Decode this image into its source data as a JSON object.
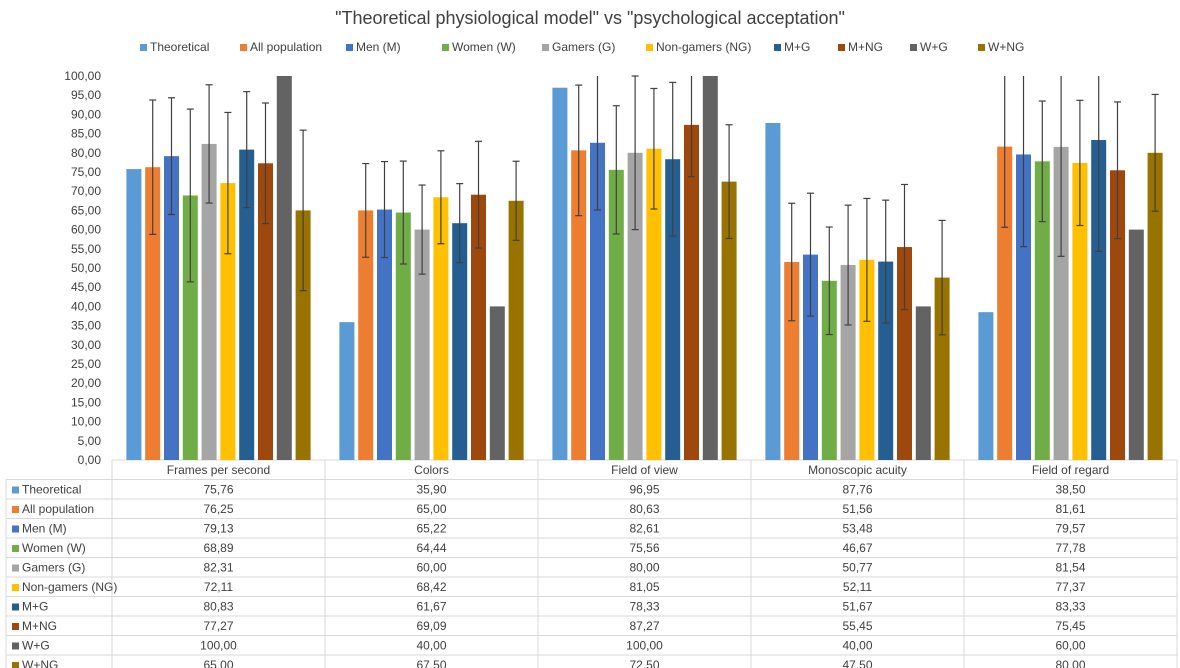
{
  "chart_data": {
    "type": "bar",
    "title": "\"Theoretical physiological model\" vs \"psychological acceptation\"",
    "xlabel": "",
    "ylabel": "",
    "ylim": [
      0,
      100
    ],
    "y_tick_step": 5,
    "y_tick_labels": [
      "0,00",
      "5,00",
      "10,00",
      "15,00",
      "20,00",
      "25,00",
      "30,00",
      "35,00",
      "40,00",
      "45,00",
      "50,00",
      "55,00",
      "60,00",
      "65,00",
      "70,00",
      "75,00",
      "80,00",
      "85,00",
      "90,00",
      "95,00",
      "100,00"
    ],
    "grid": false,
    "legend_position": "top",
    "categories": [
      "Frames per second",
      "Colors",
      "Field of view",
      "Monoscopic acuity",
      "Field of regard"
    ],
    "series": [
      {
        "name": "Theoretical",
        "color": "#5b9bd5",
        "values": [
          75.76,
          35.9,
          96.95,
          87.76,
          38.5
        ],
        "value_labels": [
          "75,76",
          "35,90",
          "96,95",
          "87,76",
          "38,50"
        ],
        "errors": [
          null,
          null,
          null,
          null,
          null
        ]
      },
      {
        "name": "All population",
        "color": "#ed7d31",
        "values": [
          76.25,
          65.0,
          80.63,
          51.56,
          81.61
        ],
        "value_labels": [
          "76,25",
          "65,00",
          "80,63",
          "51,56",
          "81,61"
        ],
        "errors": [
          17.5,
          12.2,
          17.0,
          15.3,
          21.0
        ]
      },
      {
        "name": "Men (M)",
        "color": "#4472c4",
        "values": [
          79.13,
          65.22,
          82.61,
          53.48,
          79.57
        ],
        "value_labels": [
          "79,13",
          "65,22",
          "82,61",
          "53,48",
          "79,57"
        ],
        "errors": [
          15.2,
          12.5,
          17.5,
          16.0,
          24.0
        ]
      },
      {
        "name": "Women (W)",
        "color": "#70ad47",
        "values": [
          68.89,
          64.44,
          75.56,
          46.67,
          77.78
        ],
        "value_labels": [
          "68,89",
          "64,44",
          "75,56",
          "46,67",
          "77,78"
        ],
        "errors": [
          22.5,
          13.4,
          16.7,
          14.0,
          15.7
        ]
      },
      {
        "name": "Gamers (G)",
        "color": "#a5a5a5",
        "values": [
          82.31,
          60.0,
          80.0,
          50.77,
          81.54
        ],
        "value_labels": [
          "82,31",
          "60,00",
          "80,00",
          "50,77",
          "81,54"
        ],
        "errors": [
          15.4,
          11.6,
          20.0,
          15.6,
          28.5
        ]
      },
      {
        "name": "Non-gamers (NG)",
        "color": "#ffc000",
        "values": [
          72.11,
          68.42,
          81.05,
          52.11,
          77.37
        ],
        "value_labels": [
          "72,11",
          "68,42",
          "81,05",
          "52,11",
          "77,37"
        ],
        "errors": [
          18.4,
          12.1,
          15.7,
          16.0,
          16.3
        ]
      },
      {
        "name": "M+G",
        "color": "#255e91",
        "values": [
          80.83,
          61.67,
          78.33,
          51.67,
          83.33
        ],
        "value_labels": [
          "80,83",
          "61,67",
          "78,33",
          "51,67",
          "83,33"
        ],
        "errors": [
          15.1,
          10.3,
          20.0,
          16.0,
          29.0
        ]
      },
      {
        "name": "M+NG",
        "color": "#9e480e",
        "values": [
          77.27,
          69.09,
          87.27,
          55.45,
          75.45
        ],
        "value_labels": [
          "77,27",
          "69,09",
          "87,27",
          "55,45",
          "75,45"
        ],
        "errors": [
          15.7,
          13.9,
          13.5,
          16.3,
          17.8
        ]
      },
      {
        "name": "W+G",
        "color": "#636363",
        "values": [
          100.0,
          40.0,
          100.0,
          40.0,
          60.0
        ],
        "value_labels": [
          "100,00",
          "40,00",
          "100,00",
          "40,00",
          "60,00"
        ],
        "errors": [
          null,
          null,
          null,
          null,
          null
        ]
      },
      {
        "name": "W+NG",
        "color": "#997300",
        "values": [
          65.0,
          67.5,
          72.5,
          47.5,
          80.0
        ],
        "value_labels": [
          "65,00",
          "67,50",
          "72,50",
          "47,50",
          "80,00"
        ],
        "errors": [
          20.9,
          10.3,
          14.8,
          14.9,
          15.2
        ]
      }
    ]
  }
}
